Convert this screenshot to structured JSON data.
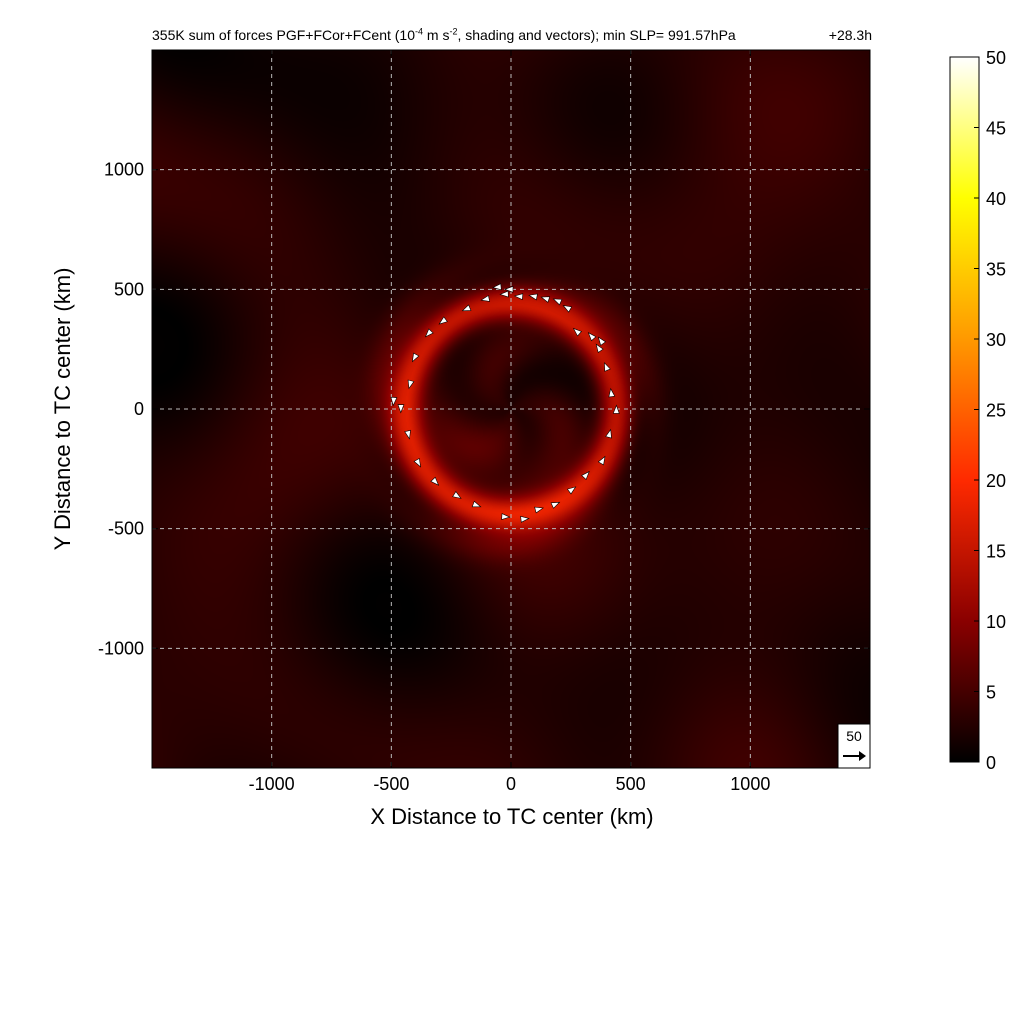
{
  "chart_data": {
    "type": "heatmap",
    "title": {
      "prefix": "355K sum of forces PGF+FCor+FCent (10",
      "exp1": "-4",
      "mid": " m s",
      "exp2": "-2",
      "suffix": ", shading and vectors); min SLP= 991.57hPa",
      "time": "+28.3h"
    },
    "xlabel": "X Distance to TC center (km)",
    "ylabel": "Y Distance to TC center (km)",
    "xlim": [
      -1500,
      1500
    ],
    "ylim": [
      -1500,
      1500
    ],
    "xticks": [
      -1000,
      -500,
      0,
      500,
      1000
    ],
    "yticks": [
      -1000,
      -500,
      0,
      500,
      1000
    ],
    "xtick_labels": [
      "-1000",
      "-500",
      "0",
      "500",
      "1000"
    ],
    "ytick_labels": [
      "-1000",
      "-500",
      "0",
      "500",
      "1000"
    ],
    "grid": true,
    "colorbar": {
      "range": [
        0,
        50
      ],
      "ticks": [
        0,
        5,
        10,
        15,
        20,
        25,
        30,
        35,
        40,
        45,
        50
      ],
      "tick_labels": [
        "0",
        "5",
        "10",
        "15",
        "20",
        "25",
        "30",
        "35",
        "40",
        "45",
        "50"
      ],
      "colormap": "hot",
      "colors": [
        "#000000",
        "#8a0000",
        "#ff2a00",
        "#ff9900",
        "#ffff00",
        "#ffffff"
      ]
    },
    "field": {
      "ring_radius_km": 440,
      "ring_width_km": 70,
      "ring_peak_value": 13,
      "background_value": 2.5
    },
    "vector_key": {
      "label": "50",
      "magnitude": 50
    },
    "vectors": [
      {
        "x": -50,
        "y": 510
      },
      {
        "x": -20,
        "y": 480
      },
      {
        "x": 40,
        "y": 470
      },
      {
        "x": 100,
        "y": 470
      },
      {
        "x": 150,
        "y": 460
      },
      {
        "x": 200,
        "y": 450
      },
      {
        "x": 240,
        "y": 420
      },
      {
        "x": 280,
        "y": 320
      },
      {
        "x": 340,
        "y": 300
      },
      {
        "x": 370,
        "y": 250
      },
      {
        "x": 400,
        "y": 170
      },
      {
        "x": 420,
        "y": 60
      },
      {
        "x": 440,
        "y": -10
      },
      {
        "x": 410,
        "y": -110
      },
      {
        "x": 380,
        "y": -220
      },
      {
        "x": 310,
        "y": -280
      },
      {
        "x": 250,
        "y": -340
      },
      {
        "x": 180,
        "y": -400
      },
      {
        "x": 110,
        "y": -420
      },
      {
        "x": 50,
        "y": -460
      },
      {
        "x": -30,
        "y": -450
      },
      {
        "x": -150,
        "y": -400
      },
      {
        "x": -230,
        "y": -360
      },
      {
        "x": -320,
        "y": -300
      },
      {
        "x": -390,
        "y": -220
      },
      {
        "x": -430,
        "y": -100
      },
      {
        "x": -460,
        "y": 10
      },
      {
        "x": -420,
        "y": 110
      },
      {
        "x": -400,
        "y": 220
      },
      {
        "x": -340,
        "y": 320
      },
      {
        "x": -280,
        "y": 370
      },
      {
        "x": -180,
        "y": 420
      },
      {
        "x": -100,
        "y": 460
      },
      {
        "x": 0,
        "y": 500
      },
      {
        "x": -490,
        "y": 40
      },
      {
        "x": 380,
        "y": 280
      }
    ]
  }
}
